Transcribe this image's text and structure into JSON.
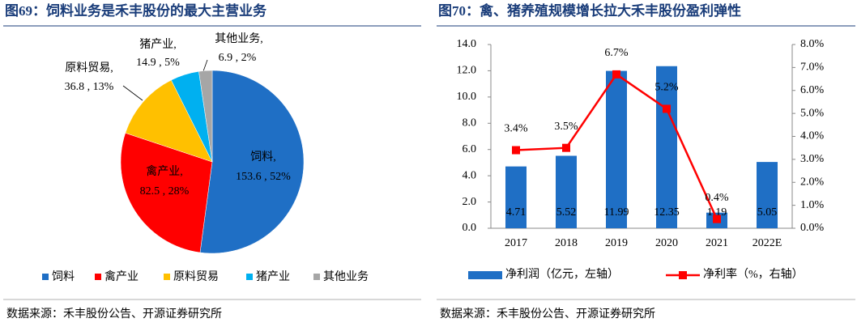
{
  "chart_data": [
    {
      "type": "pie",
      "title": "图69：饲料业务是禾丰股份的最大主营业务",
      "categories": [
        "饲料",
        "禽产业",
        "原料贸易",
        "猪产业",
        "其他业务"
      ],
      "values": [
        153.6,
        82.5,
        36.8,
        14.9,
        6.9
      ],
      "value_labels": [
        "153.6 , 52%",
        "82.5 , 28%",
        "36.8 , 13%",
        "14.9 , 5%",
        "6.9 , 2%"
      ],
      "colors": [
        "#1f6fc5",
        "#ff0000",
        "#ffc000",
        "#00b0f0",
        "#a6a6a6"
      ],
      "source": "数据来源：禾丰股份公告、开源证券研究所"
    },
    {
      "type": "bar_line",
      "title": "图70：禽、猪养殖规模增长拉大禾丰股份盈利弹性",
      "categories": [
        "2017",
        "2018",
        "2019",
        "2020",
        "2021",
        "2022E"
      ],
      "series": [
        {
          "name": "净利润（亿元，左轴）",
          "color": "#1f6fc5",
          "type": "bar",
          "values": [
            4.71,
            5.52,
            11.99,
            12.35,
            1.19,
            5.05
          ]
        },
        {
          "name": "净利率（%，右轴）",
          "color": "#ff0000",
          "type": "line",
          "axis": "y2",
          "values": [
            3.4,
            3.5,
            6.7,
            5.2,
            0.4,
            null
          ],
          "value_labels": [
            "3.4%",
            "3.5%",
            "6.7%",
            "5.2%",
            "0.4%",
            null
          ]
        }
      ],
      "ylim": [
        0,
        14
      ],
      "yticks": [
        {
          "value": 0,
          "label": "0.0"
        },
        {
          "value": 2,
          "label": "2.0"
        },
        {
          "value": 4,
          "label": "4.0"
        },
        {
          "value": 6,
          "label": "6.0"
        },
        {
          "value": 8,
          "label": "8.0"
        },
        {
          "value": 10,
          "label": "10.0"
        },
        {
          "value": 12,
          "label": "12.0"
        },
        {
          "value": 14,
          "label": "14.0"
        }
      ],
      "y2lim": [
        0,
        8
      ],
      "y2ticks": [
        {
          "value": 0,
          "label": "0.0%"
        },
        {
          "value": 1,
          "label": "1.0%"
        },
        {
          "value": 2,
          "label": "2.0%"
        },
        {
          "value": 3,
          "label": "3.0%"
        },
        {
          "value": 4,
          "label": "4.0%"
        },
        {
          "value": 5,
          "label": "5.0%"
        },
        {
          "value": 6,
          "label": "6.0%"
        },
        {
          "value": 7,
          "label": "7.0%"
        },
        {
          "value": 8,
          "label": "8.0%"
        }
      ],
      "source": "数据来源：禾丰股份公告、开源证券研究所"
    }
  ]
}
